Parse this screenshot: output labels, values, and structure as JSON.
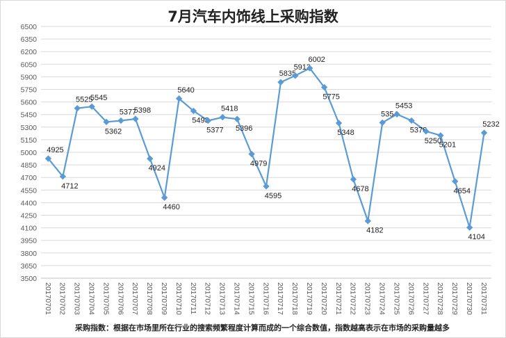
{
  "chart_data": {
    "type": "line",
    "title": "7月汽车内饰线上采购指数",
    "xlabel": "",
    "ylabel": "",
    "ylim": [
      3500,
      6500
    ],
    "y_ticks": [
      3500,
      3650,
      3800,
      3950,
      4100,
      4250,
      4400,
      4550,
      4700,
      4850,
      5000,
      5150,
      5300,
      5450,
      5600,
      5750,
      5900,
      6050,
      6200,
      6350,
      6500
    ],
    "grid": true,
    "legend": "none",
    "series_color": "#5b9bd5",
    "categories": [
      "20170701",
      "20170702",
      "20170703",
      "20170704",
      "20170705",
      "20170706",
      "20170707",
      "20170708",
      "20170709",
      "20170710",
      "20170711",
      "20170712",
      "20170713",
      "20170714",
      "20170715",
      "20170716",
      "20170717",
      "20170718",
      "20170719",
      "20170720",
      "20170721",
      "20170722",
      "20170723",
      "20170724",
      "20170725",
      "20170726",
      "20170727",
      "20170728",
      "20170729",
      "20170730",
      "20170731"
    ],
    "values": [
      4925,
      4712,
      5525,
      5545,
      5362,
      5377,
      5398,
      4924,
      4460,
      5640,
      5493,
      5377,
      5418,
      5396,
      4979,
      4595,
      5835,
      5913,
      6002,
      5775,
      5348,
      4678,
      4182,
      5354,
      5453,
      5378,
      5250,
      5201,
      4654,
      4104,
      5232
    ]
  },
  "footnote": "采购指数：根据在市场里所在行业的搜索频繁程度计算而成的一个综合数值，指数越高表示在市场的采购量越多"
}
